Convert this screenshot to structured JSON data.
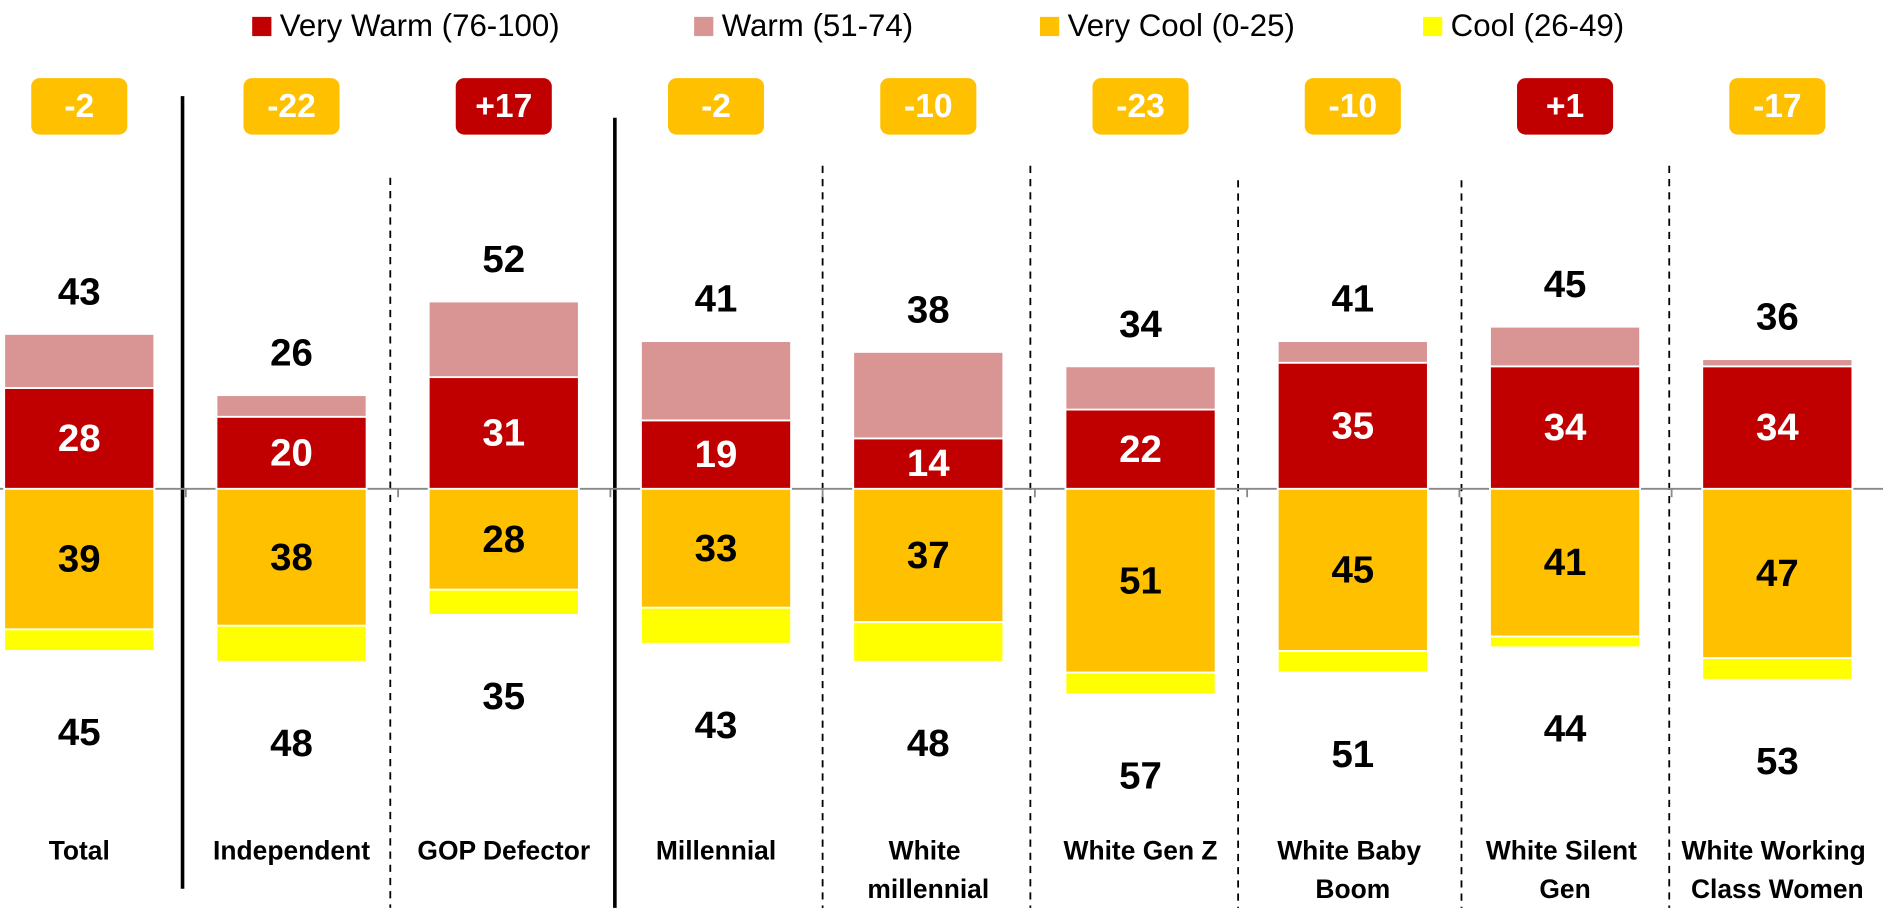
{
  "chart_data": {
    "type": "diverging_stacked_bar",
    "categories": [
      "Total",
      "Independent",
      "GOP Defector",
      "Millennial",
      "White millennial",
      "White Gen Z",
      "White Baby Boom",
      "White Silent Gen",
      "White Working Class Women"
    ],
    "series": [
      {
        "name": "Very Warm (76-100)",
        "color": "#c00000",
        "side": "warm",
        "values": [
          28,
          20,
          31,
          19,
          14,
          22,
          35,
          34,
          34
        ]
      },
      {
        "name": "Warm (51-74)",
        "color": "#d99594",
        "side": "warm",
        "values": [
          15,
          6,
          21,
          22,
          24,
          12,
          6,
          11,
          2
        ]
      },
      {
        "name": "Very Cool (0-25)",
        "color": "#ffc000",
        "side": "cool",
        "values": [
          39,
          38,
          28,
          33,
          37,
          51,
          45,
          41,
          47
        ]
      },
      {
        "name": "Cool (26-49)",
        "color": "#ffff00",
        "side": "cool",
        "values": [
          6,
          10,
          7,
          10,
          11,
          6,
          6,
          3,
          6
        ]
      }
    ],
    "warm_totals": [
      43,
      26,
      52,
      41,
      38,
      34,
      41,
      45,
      36
    ],
    "cool_totals": [
      45,
      48,
      35,
      43,
      48,
      57,
      51,
      44,
      53
    ],
    "net": {
      "values": [
        -2,
        -22,
        17,
        -2,
        -10,
        -23,
        -10,
        1,
        -17
      ],
      "value_labels": [
        "-2",
        "-22",
        "+17",
        "-2",
        "-10",
        "-23",
        "-10",
        "+1",
        "-17"
      ]
    }
  }
}
